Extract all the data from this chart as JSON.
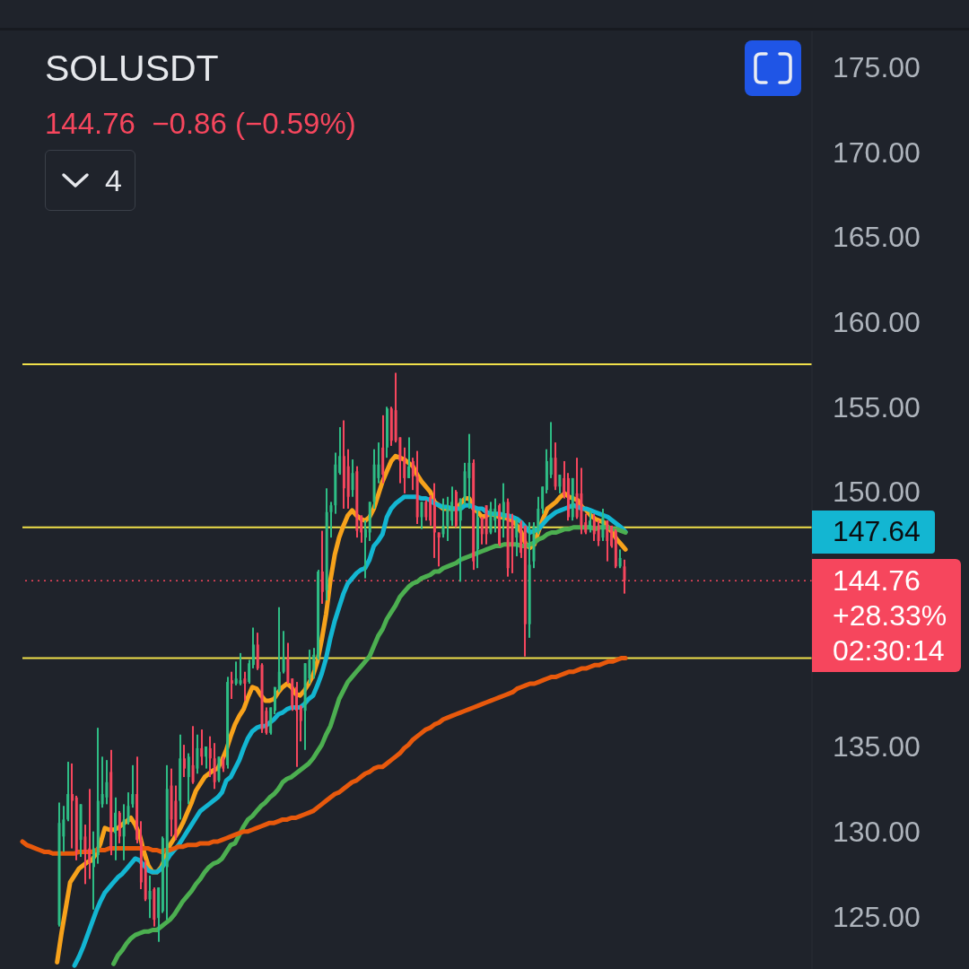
{
  "chart_data": {
    "type": "candlestick",
    "title": "SOLUSDT",
    "subtitle": "144.76  −0.86 (−0.59%)",
    "categories": [
      null,
      null,
      null,
      null,
      null,
      null,
      null,
      null,
      null,
      null,
      null,
      null,
      null,
      null,
      null,
      null,
      null,
      null,
      null,
      null,
      null,
      null,
      null,
      null,
      null,
      null,
      null,
      null,
      null,
      null,
      null,
      null,
      null,
      null,
      null,
      null,
      null,
      null,
      null,
      null,
      null,
      null,
      null,
      null,
      null,
      null,
      null,
      null,
      null,
      null,
      null,
      null,
      null,
      null,
      null,
      null,
      null,
      null,
      null,
      null,
      null,
      null,
      null,
      null,
      null,
      null,
      null,
      null,
      null,
      null,
      null,
      null,
      null,
      null,
      null,
      null,
      null,
      null,
      null,
      null,
      null,
      null,
      null,
      null,
      null,
      null,
      null,
      null,
      null,
      null,
      null,
      null,
      null,
      null,
      null,
      null,
      null,
      null,
      null,
      null,
      null,
      null,
      null,
      null,
      null,
      null,
      null,
      null,
      null,
      null,
      null,
      null,
      null,
      null,
      null,
      null,
      null,
      null,
      null,
      null,
      null,
      null,
      null,
      null,
      null,
      null,
      null,
      null,
      null,
      null,
      null,
      null,
      null,
      null,
      null,
      null,
      null,
      null,
      null,
      null,
      null,
      null,
      null,
      null,
      null,
      null,
      null,
      null,
      null,
      null,
      null,
      null,
      null,
      null,
      null,
      null,
      null,
      null,
      null,
      null,
      null,
      null,
      null,
      null,
      null,
      null,
      null,
      null,
      null,
      null,
      null,
      null,
      null,
      null,
      null,
      null,
      null,
      null,
      null,
      null,
      null,
      null,
      null
    ],
    "ohlc": [
      null,
      null,
      null,
      null,
      null,
      null,
      null,
      null,
      [
        124.5,
        131.7,
        124.4,
        130.5
      ],
      [
        129.7,
        131.5,
        128.8,
        130.7
      ],
      [
        130.7,
        134.1,
        130.6,
        132.2
      ],
      [
        132.2,
        134.0,
        129.0,
        131.8
      ],
      [
        132.0,
        132.1,
        128.3,
        128.8
      ],
      [
        129.5,
        131.6,
        128.5,
        131.6
      ],
      [
        129.7,
        130.4,
        126.9,
        128.8
      ],
      [
        129.0,
        132.5,
        127.2,
        128.1
      ],
      [
        127.9,
        130.0,
        125.4,
        129.0
      ],
      [
        128.6,
        136.1,
        128.1,
        131.8
      ],
      [
        131.6,
        134.4,
        131.4,
        132.2
      ],
      [
        132.0,
        134.2,
        131.6,
        132.9
      ],
      [
        133.5,
        134.8,
        128.6,
        129.0
      ],
      [
        129.9,
        132.0,
        128.3,
        131.1
      ],
      [
        131.1,
        131.2,
        129.3,
        129.7
      ],
      [
        129.7,
        131.6,
        128.3,
        130.7
      ],
      [
        130.5,
        132.3,
        130.4,
        131.5
      ],
      [
        131.6,
        133.9,
        131.4,
        132.2
      ],
      [
        132.2,
        134.4,
        129.3,
        129.5
      ],
      [
        129.5,
        130.6,
        126.6,
        127.0
      ],
      [
        127.9,
        128.3,
        125.9,
        126.0
      ],
      [
        126.0,
        127.4,
        124.9,
        126.5
      ],
      [
        126.6,
        126.7,
        124.4,
        124.8
      ],
      [
        124.9,
        126.7,
        123.5,
        126.7
      ],
      [
        125.3,
        129.7,
        125.2,
        129.6
      ],
      [
        127.9,
        133.9,
        124.8,
        132.5
      ],
      [
        132.7,
        133.7,
        129.7,
        130.7
      ],
      [
        131.8,
        132.7,
        129.5,
        129.7
      ],
      [
        131.8,
        135.7,
        130.7,
        134.3
      ],
      [
        134.3,
        135.1,
        133.2,
        133.7
      ],
      [
        133.2,
        134.6,
        131.6,
        134.4
      ],
      [
        133.9,
        136.2,
        132.8,
        132.9
      ],
      [
        133.7,
        135.7,
        133.4,
        134.9
      ],
      [
        134.9,
        136.0,
        133.9,
        134.4
      ],
      [
        134.4,
        135.0,
        133.7,
        135.0
      ],
      [
        134.9,
        135.6,
        133.2,
        134.3
      ],
      [
        134.3,
        135.2,
        132.5,
        132.9
      ],
      [
        133.0,
        134.4,
        132.9,
        134.4
      ],
      [
        134.3,
        134.4,
        133.5,
        133.7
      ],
      [
        133.9,
        139.1,
        133.7,
        138.8
      ],
      [
        138.9,
        139.4,
        137.8,
        138.7
      ],
      [
        138.7,
        140.0,
        138.6,
        139.0
      ],
      [
        138.7,
        140.5,
        138.6,
        138.9
      ],
      [
        139.0,
        139.4,
        137.7,
        138.7
      ],
      [
        138.8,
        140.1,
        138.7,
        139.9
      ],
      [
        139.8,
        142.0,
        139.6,
        141.0
      ],
      [
        141.0,
        141.7,
        139.5,
        139.6
      ],
      [
        139.8,
        139.9,
        135.8,
        136.0
      ],
      [
        137.1,
        137.3,
        135.7,
        135.8
      ],
      [
        135.8,
        137.3,
        135.7,
        137.3
      ],
      [
        137.1,
        138.5,
        136.9,
        138.5
      ],
      [
        138.3,
        143.2,
        138.2,
        139.4
      ],
      [
        139.4,
        141.8,
        139.3,
        140.2
      ],
      [
        140.2,
        141.1,
        138.7,
        138.8
      ],
      [
        139.0,
        139.0,
        137.1,
        137.3
      ],
      [
        138.5,
        138.8,
        133.8,
        137.1
      ],
      [
        137.4,
        137.4,
        135.3,
        136.5
      ],
      [
        137.1,
        139.9,
        134.8,
        139.9
      ],
      [
        139.0,
        140.7,
        138.7,
        140.1
      ],
      [
        139.5,
        140.8,
        139.0,
        140.4
      ],
      [
        140.2,
        145.4,
        140.1,
        145.3
      ],
      [
        145.3,
        147.7,
        143.4,
        144.1
      ],
      [
        144.2,
        150.2,
        143.6,
        148.8
      ],
      [
        148.8,
        149.4,
        147.3,
        149.2
      ],
      [
        149.2,
        152.3,
        148.7,
        151.6
      ],
      [
        151.1,
        153.8,
        151.0,
        152.1
      ],
      [
        152.1,
        154.2,
        149.0,
        150.2
      ],
      [
        151.5,
        152.5,
        149.0,
        149.7
      ],
      [
        150.1,
        151.9,
        149.7,
        151.1
      ],
      [
        151.2,
        151.5,
        147.3,
        147.7
      ],
      [
        148.6,
        148.6,
        147.0,
        147.6
      ],
      [
        147.3,
        148.3,
        144.9,
        147.8
      ],
      [
        147.6,
        149.4,
        147.1,
        149.4
      ],
      [
        149.4,
        152.5,
        149.0,
        151.6
      ],
      [
        150.8,
        152.9,
        150.5,
        151.6
      ],
      [
        152.6,
        154.5,
        150.5,
        151.0
      ],
      [
        152.6,
        155.0,
        152.0,
        154.9
      ],
      [
        154.9,
        155.0,
        152.7,
        153.0
      ],
      [
        154.8,
        157.0,
        152.9,
        153.0
      ],
      [
        153.2,
        153.2,
        150.5,
        151.8
      ],
      [
        151.9,
        152.6,
        149.9,
        150.8
      ],
      [
        150.8,
        153.2,
        150.8,
        151.5
      ],
      [
        151.8,
        152.0,
        150.1,
        150.9
      ],
      [
        150.9,
        152.4,
        148.1,
        148.5
      ],
      [
        148.5,
        149.4,
        147.8,
        149.4
      ],
      [
        149.4,
        149.5,
        148.3,
        148.5
      ],
      [
        149.7,
        149.8,
        148.0,
        148.3
      ],
      [
        149.2,
        150.5,
        146.1,
        147.6
      ],
      [
        147.6,
        147.6,
        145.6,
        147.3
      ],
      [
        147.5,
        149.6,
        147.3,
        148.0
      ],
      [
        148.0,
        149.7,
        147.1,
        149.0
      ],
      [
        148.3,
        150.3,
        148.0,
        149.4
      ],
      [
        150.0,
        150.1,
        147.9,
        148.0
      ],
      [
        148.3,
        149.6,
        144.7,
        149.6
      ],
      [
        149.6,
        151.7,
        149.2,
        151.2
      ],
      [
        150.8,
        153.4,
        149.0,
        151.7
      ],
      [
        151.7,
        151.9,
        145.4,
        145.9
      ],
      [
        146.6,
        148.9,
        145.5,
        148.5
      ],
      [
        148.5,
        148.5,
        146.9,
        147.5
      ],
      [
        149.2,
        149.2,
        146.9,
        147.5
      ],
      [
        147.6,
        149.4,
        147.5,
        149.0
      ],
      [
        148.3,
        149.6,
        147.6,
        149.0
      ],
      [
        149.2,
        149.3,
        146.8,
        146.9
      ],
      [
        148.3,
        150.5,
        147.3,
        149.4
      ],
      [
        149.4,
        149.6,
        145.0,
        145.5
      ],
      [
        148.3,
        148.7,
        145.2,
        146.8
      ],
      [
        147.3,
        148.4,
        146.2,
        148.3
      ],
      [
        148.2,
        148.3,
        146.1,
        146.4
      ],
      [
        148.0,
        148.0,
        140.3,
        142.2
      ],
      [
        142.2,
        148.2,
        141.4,
        145.7
      ],
      [
        145.9,
        148.2,
        145.5,
        148.0
      ],
      [
        147.6,
        149.7,
        147.5,
        149.0
      ],
      [
        149.0,
        150.3,
        148.7,
        150.3
      ],
      [
        150.1,
        152.5,
        149.9,
        151.8
      ],
      [
        151.0,
        154.1,
        150.8,
        152.0
      ],
      [
        152.0,
        152.9,
        150.1,
        150.3
      ],
      [
        150.3,
        151.0,
        149.9,
        151.0
      ],
      [
        150.8,
        151.8,
        149.6,
        149.8
      ],
      [
        150.8,
        151.1,
        148.3,
        148.5
      ],
      [
        148.5,
        150.8,
        148.3,
        150.8
      ],
      [
        149.9,
        152.0,
        148.4,
        148.5
      ],
      [
        149.9,
        151.4,
        147.5,
        148.0
      ],
      [
        148.2,
        148.7,
        147.5,
        147.6
      ],
      [
        147.8,
        148.9,
        147.6,
        148.3
      ],
      [
        148.3,
        148.7,
        147.1,
        147.5
      ],
      [
        148.0,
        148.3,
        146.8,
        147.1
      ],
      [
        147.3,
        149.0,
        147.1,
        148.5
      ],
      [
        148.3,
        148.3,
        145.9,
        147.1
      ],
      [
        148.0,
        148.0,
        146.7,
        146.8
      ],
      [
        147.7,
        147.8,
        145.5,
        145.6
      ],
      [
        145.6,
        146.6,
        145.5,
        146.1
      ],
      [
        145.6,
        146.0,
        144.0,
        144.76
      ],
      null,
      null,
      null,
      null,
      null,
      null,
      null,
      null,
      null,
      null,
      null,
      null,
      null,
      null,
      null,
      null,
      null,
      null,
      null,
      null,
      null,
      null,
      null,
      null,
      null,
      null,
      null,
      null,
      null,
      null,
      null,
      null,
      null,
      null,
      null,
      null,
      null,
      null,
      null,
      null,
      null,
      null,
      null
    ],
    "colors": [
      null,
      null,
      null,
      null,
      null,
      null,
      null,
      null,
      "#2ebd85",
      "#2ebd85",
      "#2ebd85",
      "#f6465d",
      "#f6465d",
      "#2ebd85",
      "#f6465d",
      "#f6465d",
      "#2ebd85",
      "#2ebd85",
      "#2ebd85",
      "#2ebd85",
      "#f6465d",
      "#2ebd85",
      "#f6465d",
      "#2ebd85",
      "#2ebd85",
      "#2ebd85",
      "#f6465d",
      "#f6465d",
      "#f6465d",
      "#2ebd85",
      "#f6465d",
      "#2ebd85",
      "#2ebd85",
      "#2ebd85",
      "#f6465d",
      "#f6465d",
      "#2ebd85",
      "#f6465d",
      "#2ebd85",
      "#f6465d",
      "#2ebd85",
      "#f6465d",
      "#2ebd85",
      "#f6465d",
      "#f6465d",
      "#2ebd85",
      "#f6465d",
      "#2ebd85",
      "#f6465d",
      "#2ebd85",
      "#2ebd85",
      "#f6465d",
      "#2ebd85",
      "#2ebd85",
      "#f6465d",
      "#f6465d",
      "#f6465d",
      "#2ebd85",
      "#2ebd85",
      "#2ebd85",
      "#2ebd85",
      "#f6465d",
      "#f6465d",
      "#f6465d",
      "#f6465d",
      "#2ebd85",
      "#2ebd85",
      "#2ebd85",
      "#2ebd85",
      "#f6465d",
      "#2ebd85",
      "#2ebd85",
      "#2ebd85",
      "#2ebd85",
      "#f6465d",
      "#f6465d",
      "#2ebd85",
      "#f6465d",
      "#f6465d",
      "#2ebd85",
      "#2ebd85",
      "#2ebd85",
      "#2ebd85",
      "#f6465d",
      "#2ebd85",
      "#f6465d",
      "#f6465d",
      "#f6465d",
      "#f6465d",
      "#2ebd85",
      "#f6465d",
      "#f6465d",
      "#2ebd85",
      "#f6465d",
      "#f6465d",
      "#f6465d",
      "#f6465d",
      "#2ebd85",
      "#2ebd85",
      "#2ebd85",
      "#f6465d",
      "#2ebd85",
      "#2ebd85",
      "#2ebd85",
      "#f6465d",
      "#2ebd85",
      "#f6465d",
      "#f6465d",
      "#2ebd85",
      "#2ebd85",
      "#f6465d",
      "#2ebd85",
      "#f6465d",
      "#f6465d",
      "#2ebd85",
      "#f6465d",
      "#f6465d",
      "#2ebd85",
      "#2ebd85",
      "#2ebd85",
      "#2ebd85",
      "#2ebd85",
      "#2ebd85",
      "#f6465d",
      "#2ebd85",
      "#f6465d",
      "#f6465d",
      "#2ebd85",
      "#f6465d",
      "#f6465d",
      "#f6465d",
      "#2ebd85",
      "#f6465d",
      "#f6465d",
      "#2ebd85",
      "#f6465d",
      "#f6465d",
      "#f6465d",
      "#2ebd85",
      "#f6465d",
      null,
      null,
      null,
      null,
      null,
      null,
      null,
      null,
      null,
      null,
      null,
      null,
      null,
      null,
      null,
      null,
      null,
      null,
      null,
      null,
      null,
      null,
      null,
      null,
      null,
      null,
      null,
      null,
      null,
      null,
      null,
      null,
      null,
      null,
      null,
      null,
      null,
      null,
      null,
      null,
      null,
      null,
      null
    ],
    "series": [
      {
        "type": "line",
        "color": "#f7a21b",
        "values": [
          null,
          null,
          null,
          null,
          null,
          null,
          null,
          null,
          122.3,
          124.0,
          125.5,
          127.0,
          127.4,
          127.8,
          128.0,
          128.2,
          128.3,
          128.7,
          129.3,
          130.2,
          130.1,
          130.1,
          130.2,
          130.4,
          130.6,
          130.8,
          130.4,
          129.8,
          128.8,
          128.0,
          127.6,
          127.6,
          127.9,
          128.5,
          129.2,
          129.6,
          130.0,
          130.5,
          131.1,
          131.7,
          132.4,
          132.8,
          133.2,
          133.4,
          133.6,
          133.7,
          134.2,
          134.8,
          135.6,
          136.3,
          136.8,
          137.2,
          137.9,
          138.5,
          138.4,
          138.0,
          137.7,
          137.7,
          137.8,
          138.2,
          138.5,
          138.7,
          138.5,
          138.1,
          138.0,
          138.3,
          138.7,
          139.2,
          140.0,
          141.3,
          142.8,
          144.8,
          146.3,
          147.3,
          148.0,
          148.6,
          148.9,
          148.6,
          148.4,
          148.3,
          148.5,
          149.0,
          149.8,
          150.6,
          151.2,
          151.8,
          152.1,
          152.0,
          151.9,
          151.7,
          151.5,
          151.0,
          150.6,
          150.3,
          150.0,
          149.4,
          149.2,
          149.0,
          149.0,
          149.0,
          149.0,
          149.3,
          149.6,
          149.6,
          149.0,
          148.8,
          148.5,
          148.6,
          148.7,
          148.6,
          148.5,
          148.5,
          148.4,
          148.3,
          148.0,
          147.6,
          146.9,
          146.7,
          146.9,
          147.7,
          148.4,
          149.0,
          149.2,
          149.4,
          149.7,
          149.9,
          149.7,
          149.6,
          149.5,
          149.1,
          148.9,
          148.6,
          148.4,
          148.3,
          148.2,
          147.9,
          147.6,
          147.2,
          146.9,
          146.6,
          null,
          null,
          null,
          null,
          null,
          null,
          null,
          null,
          null,
          null,
          null,
          null,
          null,
          null,
          null,
          null,
          null,
          null,
          null,
          null,
          null,
          null,
          null,
          null,
          null,
          null,
          null,
          null,
          null,
          null,
          null,
          null,
          null,
          null,
          null,
          null,
          null,
          null,
          null,
          null,
          null,
          null,
          null
        ]
      },
      {
        "type": "line",
        "color": "#13b6d2",
        "values": [
          null,
          null,
          null,
          null,
          null,
          null,
          null,
          null,
          null,
          null,
          null,
          null,
          122.1,
          122.6,
          123.2,
          123.9,
          124.6,
          125.3,
          125.9,
          126.4,
          126.7,
          127.0,
          127.3,
          127.5,
          127.8,
          128.1,
          128.4,
          128.3,
          128.0,
          127.7,
          127.6,
          127.6,
          127.8,
          128.2,
          128.6,
          128.9,
          129.2,
          129.6,
          130.0,
          130.4,
          130.8,
          131.2,
          131.4,
          131.6,
          131.8,
          132.0,
          132.3,
          133.0,
          133.2,
          133.7,
          134.2,
          134.9,
          135.5,
          135.9,
          136.1,
          136.2,
          136.2,
          136.4,
          136.6,
          136.9,
          137.0,
          137.2,
          137.3,
          137.3,
          137.3,
          137.5,
          137.8,
          138.0,
          138.6,
          139.3,
          140.2,
          141.4,
          142.4,
          143.2,
          144.0,
          144.6,
          144.9,
          145.2,
          145.4,
          145.5,
          146.0,
          146.8,
          147.1,
          147.5,
          148.5,
          149.0,
          149.3,
          149.5,
          149.7,
          149.7,
          149.7,
          149.7,
          149.6,
          149.6,
          149.5,
          149.3,
          149.2,
          149.1,
          149.1,
          149.0,
          149.0,
          149.0,
          149.2,
          149.2,
          149.1,
          149.0,
          149.0,
          148.8,
          148.7,
          148.7,
          148.7,
          148.6,
          148.6,
          148.5,
          148.4,
          148.2,
          147.9,
          147.6,
          147.7,
          147.8,
          148.1,
          148.4,
          148.6,
          148.8,
          148.9,
          149.0,
          149.1,
          149.2,
          149.1,
          149.0,
          149.0,
          148.9,
          148.8,
          148.7,
          148.6,
          148.5,
          148.3,
          148.1,
          147.9,
          147.64,
          null,
          null,
          null,
          null,
          null,
          null,
          null,
          null,
          null,
          null,
          null,
          null,
          null,
          null,
          null,
          null,
          null,
          null,
          null,
          null,
          null,
          null,
          null,
          null,
          null,
          null,
          null,
          null,
          null,
          null,
          null,
          null,
          null,
          null,
          null,
          null,
          null,
          null,
          null,
          null,
          null,
          null,
          null
        ]
      },
      {
        "type": "line",
        "color": "#4caf50",
        "values": [
          null,
          null,
          null,
          null,
          null,
          null,
          null,
          null,
          null,
          null,
          null,
          null,
          null,
          null,
          null,
          null,
          null,
          null,
          null,
          null,
          null,
          122.2,
          122.7,
          123.0,
          123.4,
          123.7,
          123.9,
          124.0,
          124.1,
          124.1,
          124.2,
          124.2,
          124.4,
          124.6,
          124.8,
          125.1,
          125.5,
          125.9,
          126.2,
          126.5,
          126.9,
          127.2,
          127.6,
          127.9,
          128.1,
          128.2,
          128.4,
          128.8,
          129.2,
          129.3,
          129.8,
          130.3,
          130.7,
          130.9,
          131.2,
          131.5,
          131.7,
          132.0,
          132.2,
          132.5,
          132.9,
          133.1,
          133.2,
          133.4,
          133.6,
          133.8,
          134.0,
          134.3,
          134.7,
          135.1,
          135.7,
          136.2,
          137.0,
          137.8,
          138.3,
          138.8,
          139.1,
          139.4,
          139.7,
          140.0,
          140.3,
          140.9,
          141.5,
          141.9,
          142.5,
          142.9,
          143.3,
          143.8,
          144.1,
          144.4,
          144.6,
          144.7,
          144.9,
          145.0,
          145.1,
          145.3,
          145.3,
          145.5,
          145.6,
          145.7,
          145.8,
          146.0,
          146.1,
          146.2,
          146.3,
          146.4,
          146.5,
          146.6,
          146.7,
          146.8,
          146.8,
          146.9,
          146.9,
          146.9,
          146.9,
          146.8,
          146.8,
          146.9,
          147.0,
          147.2,
          147.3,
          147.5,
          147.6,
          147.6,
          147.7,
          147.8,
          147.8,
          147.9,
          147.9,
          147.9,
          147.9,
          147.9,
          147.8,
          147.9,
          147.9,
          147.9,
          147.8,
          147.8,
          147.7,
          147.6,
          null,
          null,
          null,
          null,
          null,
          null,
          null,
          null,
          null,
          null,
          null,
          null,
          null,
          null,
          null,
          null,
          null,
          null,
          null,
          null,
          null,
          null,
          null,
          null,
          null,
          null,
          null,
          null,
          null,
          null,
          null,
          null,
          null,
          null,
          null,
          null,
          null,
          null,
          null,
          null,
          null,
          null,
          null
        ]
      },
      {
        "type": "line",
        "color": "#e8590c",
        "values": [
          129.4,
          129.2,
          129.1,
          129.0,
          128.9,
          128.8,
          128.8,
          128.7,
          128.7,
          128.7,
          128.7,
          128.7,
          128.7,
          128.8,
          128.8,
          128.8,
          128.8,
          128.9,
          128.9,
          128.9,
          129.0,
          129.0,
          129.0,
          129.0,
          129.0,
          129.0,
          129.0,
          129.0,
          129.0,
          129.0,
          128.9,
          128.9,
          128.8,
          128.9,
          128.9,
          129.0,
          129.1,
          129.1,
          129.2,
          129.2,
          129.2,
          129.3,
          129.3,
          129.3,
          129.4,
          129.4,
          129.5,
          129.6,
          129.7,
          129.8,
          129.9,
          130.0,
          130.0,
          130.1,
          130.2,
          130.3,
          130.4,
          130.5,
          130.5,
          130.6,
          130.7,
          130.7,
          130.8,
          130.8,
          130.9,
          131.0,
          131.1,
          131.2,
          131.4,
          131.6,
          131.8,
          132.0,
          132.2,
          132.3,
          132.5,
          132.7,
          132.9,
          133.0,
          133.2,
          133.4,
          133.5,
          133.7,
          133.8,
          133.8,
          134.0,
          134.2,
          134.4,
          134.6,
          134.9,
          135.1,
          135.4,
          135.6,
          135.8,
          136.0,
          136.1,
          136.3,
          136.4,
          136.6,
          136.7,
          136.8,
          136.9,
          137.0,
          137.1,
          137.2,
          137.3,
          137.4,
          137.5,
          137.6,
          137.7,
          137.8,
          137.9,
          138.0,
          138.1,
          138.2,
          138.4,
          138.5,
          138.6,
          138.7,
          138.7,
          138.8,
          138.9,
          139.0,
          139.1,
          139.1,
          139.2,
          139.3,
          139.4,
          139.4,
          139.5,
          139.6,
          139.6,
          139.7,
          139.8,
          139.8,
          139.9,
          140.0,
          140.0,
          140.1,
          140.2,
          140.2,
          null,
          null,
          null,
          null,
          null,
          null,
          null,
          null,
          null,
          null,
          null,
          null,
          null,
          null,
          null,
          null,
          null,
          null,
          null,
          null,
          null,
          null,
          null,
          null,
          null,
          null,
          null,
          null,
          null,
          null,
          null,
          null,
          null,
          null,
          null,
          null,
          null,
          null,
          null,
          null,
          null,
          null,
          null
        ]
      }
    ],
    "ylim": [
      121.9,
      177.1
    ],
    "yticks": [
      {
        "value": 125,
        "label": "125.00"
      },
      {
        "value": 130,
        "label": "130.00"
      },
      {
        "value": 135,
        "label": "135.00"
      },
      {
        "value": 150,
        "label": "150.00"
      },
      {
        "value": 155,
        "label": "155.00"
      },
      {
        "value": 160,
        "label": "160.00"
      },
      {
        "value": 165,
        "label": "165.00"
      },
      {
        "value": 170,
        "label": "170.00"
      },
      {
        "value": 175,
        "label": "175.00"
      }
    ],
    "ref_lines": [
      {
        "axis": "y",
        "value": 157.5,
        "color": "#f0e04a",
        "line_style": "solid"
      },
      {
        "axis": "y",
        "value": 147.9,
        "color": "#f0e04a",
        "line_style": "solid"
      },
      {
        "axis": "y",
        "value": 140.2,
        "color": "#f0e04a",
        "line_style": "solid"
      },
      {
        "axis": "y",
        "value": 144.76,
        "label": "144.76",
        "color": "#f6465d",
        "line_style": "dotted"
      }
    ],
    "annotations": [
      "147.64",
      "+28.33%",
      "02:30:14",
      "4"
    ]
  }
}
